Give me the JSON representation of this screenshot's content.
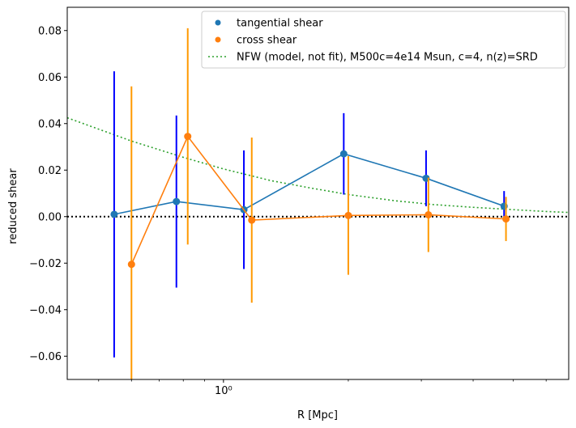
{
  "chart_data": {
    "type": "scatter",
    "xlabel": "R [Mpc]",
    "ylabel": "reduced shear",
    "xscale": "log",
    "xlim": [
      0.42,
      6.8
    ],
    "ylim": [
      -0.07,
      0.09
    ],
    "yticks": [
      -0.06,
      -0.04,
      -0.02,
      0.0,
      0.02,
      0.04,
      0.06,
      0.08
    ],
    "ytick_labels": [
      "−0.06",
      "−0.04",
      "−0.02",
      "0.00",
      "0.02",
      "0.04",
      "0.06",
      "0.08"
    ],
    "xticks": [
      1
    ],
    "xtick_labels": [
      "10⁰"
    ],
    "legend_position": "top-right",
    "grid": false,
    "zero_line": {
      "y": 0,
      "color": "#000000",
      "style": "dotted"
    },
    "series": [
      {
        "name": "tangential shear",
        "marker_color": "#1f77b4",
        "line_color": "#1f77b4",
        "errorbar_color": "#0000ff",
        "x": [
          0.545,
          0.77,
          1.12,
          1.95,
          3.08,
          4.75
        ],
        "y": [
          0.001,
          0.0065,
          0.003,
          0.027,
          0.0165,
          0.0045
        ],
        "yerr": [
          0.0615,
          0.037,
          0.0255,
          0.0175,
          0.012,
          0.0065
        ]
      },
      {
        "name": "cross shear",
        "marker_color": "#ff7f0e",
        "line_color": "#ff7f0e",
        "errorbar_color": "#ff9900",
        "x": [
          0.6,
          0.82,
          1.17,
          2.0,
          3.12,
          4.8
        ],
        "y": [
          -0.0205,
          0.0345,
          -0.0015,
          0.0005,
          0.0008,
          -0.001
        ],
        "yerr": [
          0.0765,
          0.0465,
          0.0355,
          0.0255,
          0.016,
          0.0095
        ]
      }
    ],
    "model": {
      "name": "NFW (model, not fit), M500c=4e14 Msun, c=4, n(z)=SRD",
      "color": "#2ca02c",
      "style": "dotted",
      "x": [
        0.42,
        0.6,
        0.8,
        1.0,
        1.3,
        1.6,
        2.0,
        2.6,
        3.2,
        4.0,
        5.0,
        6.0,
        6.8
      ],
      "y": [
        0.0425,
        0.0325,
        0.0255,
        0.0205,
        0.0155,
        0.0125,
        0.0095,
        0.0068,
        0.0052,
        0.004,
        0.003,
        0.0022,
        0.0018
      ]
    }
  }
}
